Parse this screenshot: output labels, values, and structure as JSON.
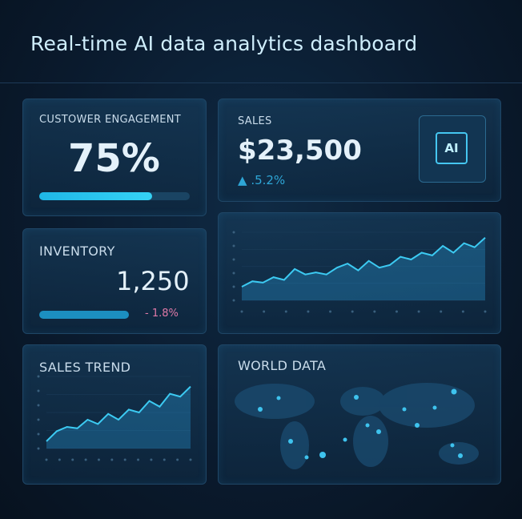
{
  "header": {
    "title": "Real-time AI data analytics dashboard"
  },
  "engagement": {
    "label": "CUSTOWER ENGAGEMENT",
    "value": "75%",
    "percent": 75
  },
  "sales": {
    "label": "SALES",
    "value": "$23,500",
    "change": ".5.2%",
    "icon_text": "AI"
  },
  "inventory": {
    "label": "INVENTORY",
    "value": "1,250",
    "change": "- 1.8%"
  },
  "trend_chart": {
    "values": [
      20,
      28,
      26,
      34,
      30,
      46,
      38,
      41,
      38,
      48,
      54,
      44,
      58,
      48,
      52,
      64,
      60,
      70,
      66,
      80,
      70,
      84,
      78,
      92
    ],
    "ylim": [
      0,
      100
    ]
  },
  "sales_trend": {
    "label": "SALES TREND",
    "values": [
      10,
      24,
      30,
      28,
      40,
      34,
      48,
      40,
      54,
      50,
      66,
      58,
      76,
      72,
      86
    ],
    "ylim": [
      0,
      100
    ]
  },
  "world": {
    "label": "WORLD DATA"
  }
}
